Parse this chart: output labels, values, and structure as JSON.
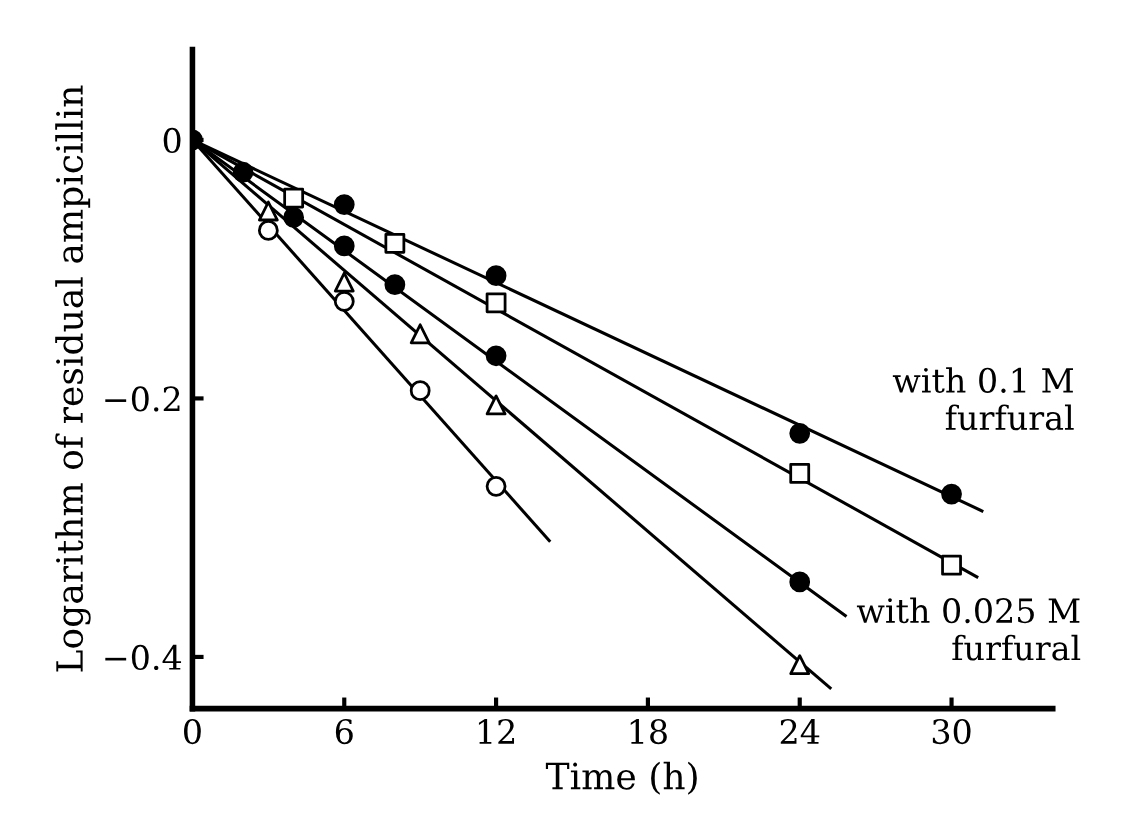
{
  "chart_data": {
    "type": "scatter",
    "xlabel": "Time (h)",
    "ylabel": "Logarithm of residual ampicillin",
    "xlim": [
      0,
      34
    ],
    "ylim": [
      -0.44,
      0.07
    ],
    "xticks": [
      0,
      6,
      12,
      18,
      24,
      30
    ],
    "yticks": [
      0,
      {
        "value": -0.2,
        "label": "−0.2"
      },
      {
        "value": -0.4,
        "label": "−0.4"
      }
    ],
    "grid": false,
    "series": [
      {
        "marker": "circle",
        "color": "#000000",
        "x": [
          0,
          2,
          6,
          12,
          24,
          30
        ],
        "values": [
          0,
          -0.025,
          -0.05,
          -0.105,
          -0.227,
          -0.274
        ]
      },
      {
        "marker": "square",
        "color": "#ffffff",
        "x": [
          4,
          8,
          12,
          24,
          30
        ],
        "values": [
          -0.045,
          -0.08,
          -0.126,
          -0.258,
          -0.329
        ]
      },
      {
        "marker": "circle",
        "color": "#000000",
        "x": [
          4,
          6,
          8,
          12,
          24
        ],
        "values": [
          -0.06,
          -0.082,
          -0.112,
          -0.167,
          -0.342
        ]
      },
      {
        "marker": "triangle",
        "color": "#ffffff",
        "x": [
          3,
          6,
          9,
          12,
          24
        ],
        "values": [
          -0.055,
          -0.11,
          -0.15,
          -0.205,
          -0.406
        ]
      },
      {
        "marker": "circle",
        "color": "#ffffff",
        "x": [
          3,
          6,
          9,
          12
        ],
        "values": [
          -0.07,
          -0.125,
          -0.194,
          -0.268
        ]
      },
      {
        "type": "line",
        "marker": "none",
        "color": "#000000",
        "x": [
          0,
          31.2
        ],
        "values": [
          0,
          -0.287
        ]
      },
      {
        "type": "line",
        "marker": "none",
        "color": "#000000",
        "x": [
          0,
          31.0
        ],
        "values": [
          0,
          -0.338
        ]
      },
      {
        "type": "line",
        "marker": "none",
        "color": "#000000",
        "x": [
          0,
          25.8
        ],
        "values": [
          0,
          -0.368
        ]
      },
      {
        "type": "line",
        "marker": "none",
        "color": "#000000",
        "x": [
          0,
          25.2
        ],
        "values": [
          0,
          -0.424
        ]
      },
      {
        "type": "line",
        "marker": "none",
        "color": "#000000",
        "x": [
          0,
          14.1
        ],
        "values": [
          0,
          -0.31
        ]
      }
    ],
    "annotations": [
      {
        "text": "with 0.1 M\nfurfural",
        "x": 27,
        "y": -0.25
      },
      {
        "text": "with 0.025 M\nfurfural",
        "x": 25.8,
        "y": -0.368
      }
    ]
  }
}
